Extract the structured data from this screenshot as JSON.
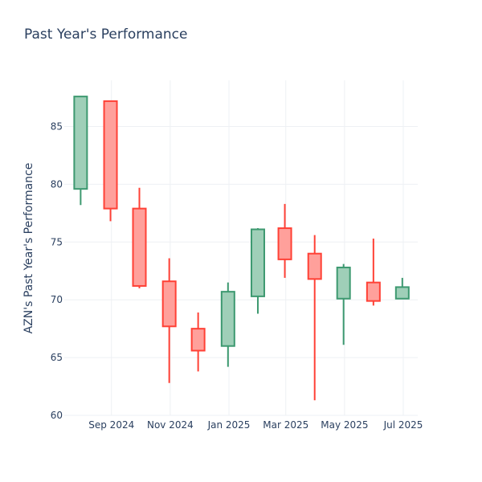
{
  "chart_data": {
    "type": "candlestick",
    "title": "Past Year's Performance",
    "ylabel": "AZN's Past Year's Performance",
    "xlabel": "",
    "ylim": [
      60,
      89
    ],
    "yticks": [
      60,
      65,
      70,
      75,
      80,
      85
    ],
    "xlim": [
      "2024-07-14",
      "2025-07-16"
    ],
    "xticks": [
      {
        "date": "2024-09-01",
        "label": "Sep 2024"
      },
      {
        "date": "2024-11-01",
        "label": "Nov 2024"
      },
      {
        "date": "2025-01-01",
        "label": "Jan 2025"
      },
      {
        "date": "2025-03-01",
        "label": "Mar 2025"
      },
      {
        "date": "2025-05-01",
        "label": "May 2025"
      },
      {
        "date": "2025-07-01",
        "label": "Jul 2025"
      }
    ],
    "grid": true,
    "colors": {
      "increasing": "#3d9970",
      "decreasing": "#ff4136",
      "increasing_fill": "#9fcfb8",
      "decreasing_fill": "#ffa09b"
    },
    "candles": [
      {
        "date": "2024-07-31",
        "open": 79.6,
        "high": 87.6,
        "low": 78.2,
        "close": 87.6
      },
      {
        "date": "2024-08-31",
        "open": 87.2,
        "high": 87.2,
        "low": 76.8,
        "close": 77.9
      },
      {
        "date": "2024-09-30",
        "open": 77.9,
        "high": 79.7,
        "low": 71.0,
        "close": 71.2
      },
      {
        "date": "2024-10-31",
        "open": 71.6,
        "high": 73.6,
        "low": 62.8,
        "close": 67.7
      },
      {
        "date": "2024-11-30",
        "open": 67.5,
        "high": 68.9,
        "low": 63.8,
        "close": 65.6
      },
      {
        "date": "2024-12-31",
        "open": 66.0,
        "high": 71.5,
        "low": 64.2,
        "close": 70.7
      },
      {
        "date": "2025-01-31",
        "open": 70.3,
        "high": 76.2,
        "low": 68.8,
        "close": 76.1
      },
      {
        "date": "2025-02-28",
        "open": 76.2,
        "high": 78.3,
        "low": 71.9,
        "close": 73.5
      },
      {
        "date": "2025-03-31",
        "open": 74.0,
        "high": 75.6,
        "low": 61.3,
        "close": 71.8
      },
      {
        "date": "2025-04-30",
        "open": 70.1,
        "high": 73.1,
        "low": 66.1,
        "close": 72.8
      },
      {
        "date": "2025-05-31",
        "open": 71.5,
        "high": 75.3,
        "low": 69.5,
        "close": 69.9
      },
      {
        "date": "2025-06-30",
        "open": 70.1,
        "high": 71.9,
        "low": 70.1,
        "close": 71.1
      }
    ]
  }
}
